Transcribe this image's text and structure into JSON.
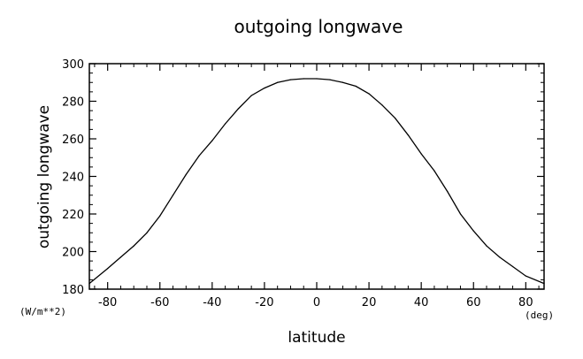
{
  "chart_data": {
    "type": "line",
    "title": "outgoing longwave",
    "xlabel": "latitude",
    "ylabel": "outgoing longwave",
    "x_unit": "(deg)",
    "y_unit": "(W/m**2)",
    "xlim": [
      -87,
      87
    ],
    "ylim": [
      180,
      300
    ],
    "xticks": [
      -80,
      -60,
      -40,
      -20,
      0,
      20,
      40,
      60,
      80
    ],
    "yticks": [
      180,
      200,
      220,
      240,
      260,
      280,
      300
    ],
    "grid": false,
    "series": [
      {
        "x": [
          -87,
          -80,
          -75,
          -70,
          -65,
          -60,
          -55,
          -50,
          -45,
          -40,
          -35,
          -30,
          -25,
          -20,
          -15,
          -10,
          -5,
          0,
          5,
          10,
          15,
          20,
          25,
          30,
          35,
          40,
          45,
          50,
          55,
          60,
          65,
          70,
          75,
          80,
          87
        ],
        "values": [
          183,
          191,
          197,
          203,
          210,
          219,
          230,
          241,
          251,
          259,
          268,
          276,
          283,
          287,
          290,
          291.5,
          292,
          292,
          291.5,
          290,
          288,
          284,
          278,
          271,
          262,
          252,
          243,
          232,
          220,
          211,
          203,
          197,
          192,
          187,
          183
        ]
      }
    ]
  }
}
